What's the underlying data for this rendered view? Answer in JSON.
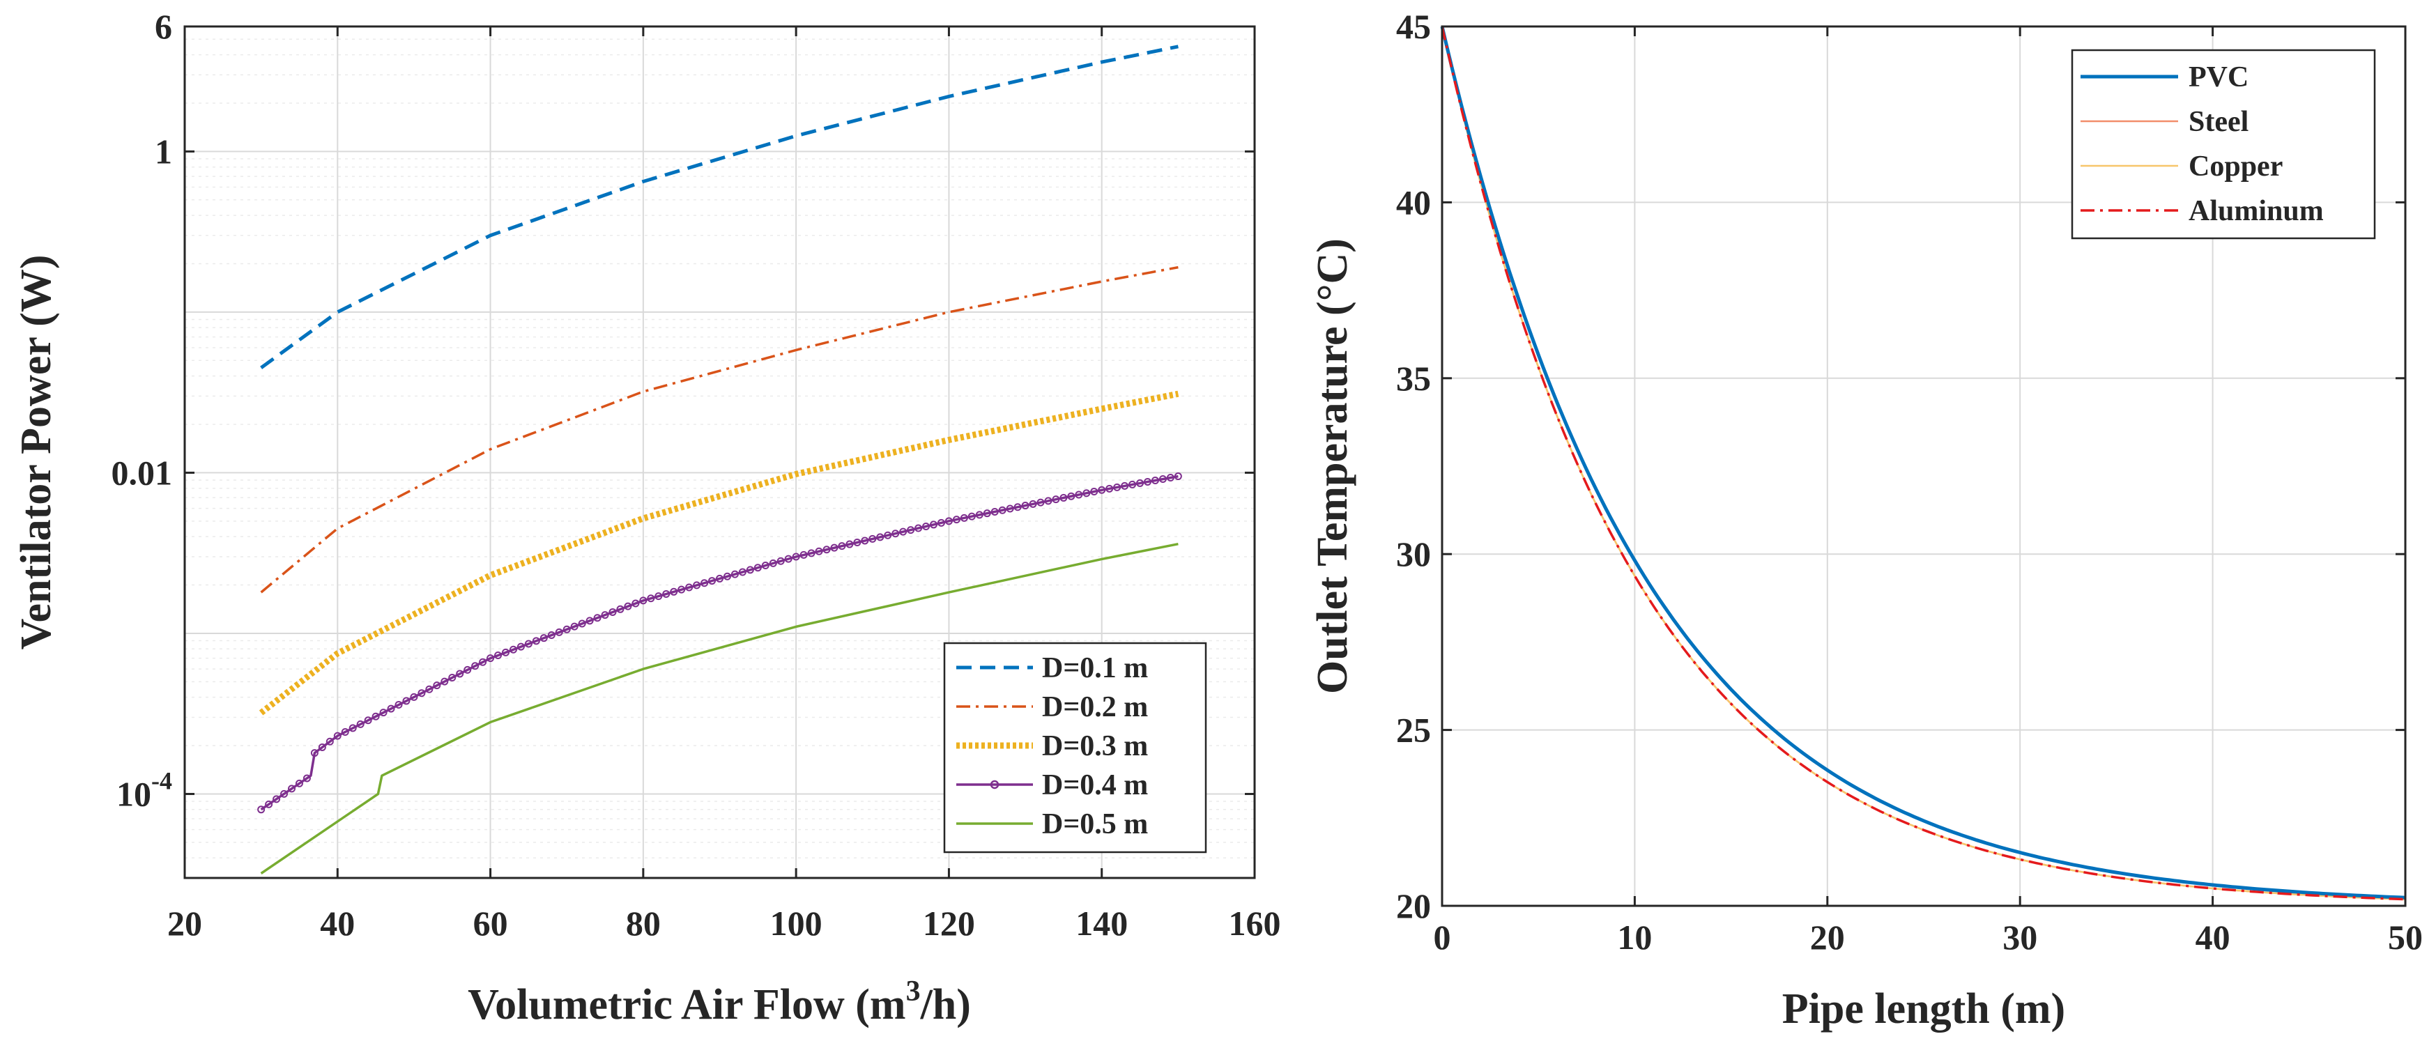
{
  "chart_data": [
    {
      "type": "line",
      "yscale": "log",
      "xlabel_prefix": "Volumetric Air Flow (m",
      "xlabel_sup": "3",
      "xlabel_suffix": "/h)",
      "ylabel": "Ventilator Power (W)",
      "xlim": [
        20,
        160
      ],
      "ylim": [
        3e-05,
        6
      ],
      "xticks": [
        20,
        40,
        60,
        80,
        100,
        120,
        140,
        160
      ],
      "xtick_labels": [
        "20",
        "40",
        "60",
        "80",
        "100",
        "120",
        "140",
        "160"
      ],
      "yticks": [
        0.0001,
        0.01,
        1,
        6
      ],
      "ytick_labels": [
        {
          "base": "10",
          "exp": "-4"
        },
        {
          "base": "0.01",
          "exp": ""
        },
        {
          "base": "1",
          "exp": ""
        },
        {
          "base": "6",
          "exp": ""
        }
      ],
      "grid": true,
      "legend_position": "bottom-right",
      "x_range": [
        30,
        150
      ],
      "series": [
        {
          "name": "D=0.1 m",
          "color": "#0072BD",
          "style": "dashed",
          "points": [
            [
              30,
              0.045
            ],
            [
              40,
              0.1
            ],
            [
              60,
              0.3
            ],
            [
              80,
              0.65
            ],
            [
              100,
              1.25
            ],
            [
              120,
              2.2
            ],
            [
              140,
              3.6
            ],
            [
              150,
              4.5
            ]
          ]
        },
        {
          "name": "D=0.2 m",
          "color": "#D95319",
          "style": "dashdot",
          "points": [
            [
              30,
              0.0018
            ],
            [
              40,
              0.0045
            ],
            [
              60,
              0.014
            ],
            [
              80,
              0.032
            ],
            [
              100,
              0.058
            ],
            [
              120,
              0.1
            ],
            [
              140,
              0.155
            ],
            [
              150,
              0.19
            ]
          ]
        },
        {
          "name": "D=0.3 m",
          "color": "#EDB120",
          "style": "dotted",
          "points": [
            [
              30,
              0.00032
            ],
            [
              40,
              0.00075
            ],
            [
              60,
              0.0023
            ],
            [
              80,
              0.0052
            ],
            [
              100,
              0.0098
            ],
            [
              120,
              0.016
            ],
            [
              140,
              0.025
            ],
            [
              150,
              0.031
            ]
          ]
        },
        {
          "name": "D=0.4 m",
          "color": "#7E2F8E",
          "style": "marker",
          "points": [
            [
              30,
              8e-05
            ],
            [
              36.5,
              0.00013
            ],
            [
              37,
              0.00018
            ],
            [
              40,
              0.00023
            ],
            [
              60,
              0.0007
            ],
            [
              80,
              0.0016
            ],
            [
              100,
              0.003
            ],
            [
              120,
              0.005
            ],
            [
              140,
              0.0078
            ],
            [
              150,
              0.0095
            ]
          ]
        },
        {
          "name": "D=0.5 m",
          "color": "#77AC30",
          "style": "solid",
          "points": [
            [
              30,
              3.2e-05
            ],
            [
              45.3,
              0.0001
            ],
            [
              45.8,
              0.00013
            ],
            [
              60,
              0.00028
            ],
            [
              80,
              0.0006
            ],
            [
              100,
              0.0011
            ],
            [
              120,
              0.0018
            ],
            [
              140,
              0.0029
            ],
            [
              150,
              0.0036
            ]
          ]
        }
      ]
    },
    {
      "type": "line",
      "xlabel": "Pipe length (m)",
      "ylabel": "Outlet Temperature (°C)",
      "xlim": [
        0,
        50
      ],
      "ylim": [
        20,
        45
      ],
      "xticks": [
        0,
        10,
        20,
        30,
        40,
        50
      ],
      "yticks": [
        20,
        25,
        30,
        35,
        40,
        45
      ],
      "grid": true,
      "legend_position": "top-right",
      "model": "T(x) = 20 + 25 * exp(-x / L)",
      "series": [
        {
          "name": "PVC",
          "color": "#0072BD",
          "style": "solid-thick",
          "decay_length_m": 10.7
        },
        {
          "name": "Steel",
          "color": "#F28E6B",
          "style": "solid-thin",
          "decay_length_m": 10.2
        },
        {
          "name": "Copper",
          "color": "#F7C66B",
          "style": "solid-thin",
          "decay_length_m": 10.2
        },
        {
          "name": "Aluminum",
          "color": "#E41A1C",
          "style": "dashdot",
          "decay_length_m": 10.2
        }
      ]
    }
  ]
}
